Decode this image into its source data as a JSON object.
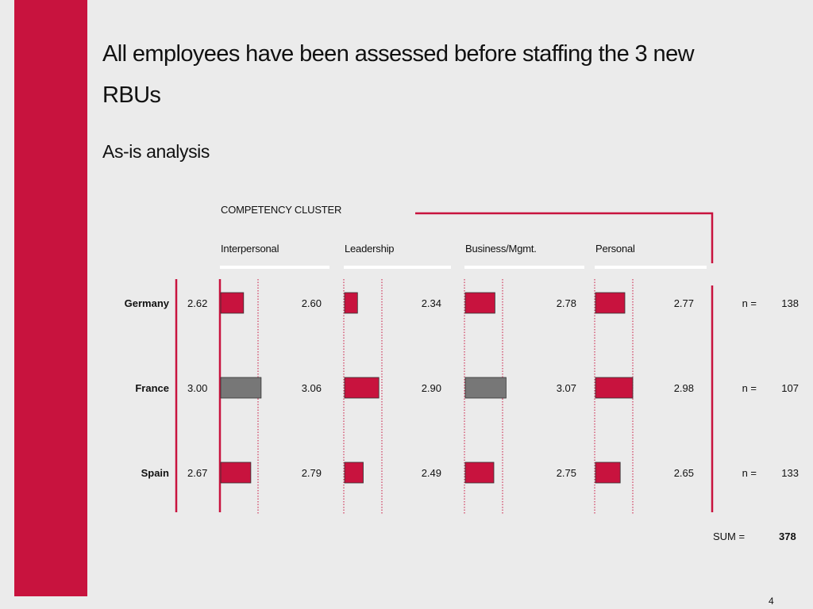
{
  "slide": {
    "title": "All employees have been assessed before staffing the 3 new RBUs",
    "subtitle": "As-is analysis",
    "page_number": "4"
  },
  "colors": {
    "accent": "#c8133e",
    "highlight_bar": "#777777",
    "background": "#ebebeb"
  },
  "chart_data": {
    "type": "bar",
    "title": "COMPETENCY CLUSTER",
    "categories": [
      "Interpersonal",
      "Leadership",
      "Business/Mgmt.",
      "Personal"
    ],
    "rows": [
      "Germany",
      "France",
      "Spain"
    ],
    "row_averages": [
      "2.62",
      "3.00",
      "2.67"
    ],
    "values": [
      [
        2.6,
        2.34,
        2.78,
        2.77
      ],
      [
        3.06,
        2.9,
        3.07,
        2.98
      ],
      [
        2.79,
        2.49,
        2.75,
        2.65
      ]
    ],
    "value_labels": [
      [
        "2.60",
        "2.34",
        "2.78",
        "2.77"
      ],
      [
        "3.06",
        "2.90",
        "3.07",
        "2.98"
      ],
      [
        "2.79",
        "2.49",
        "2.75",
        "2.65"
      ]
    ],
    "highlighted": [
      [
        false,
        false,
        false,
        false
      ],
      [
        true,
        false,
        true,
        false
      ],
      [
        false,
        false,
        false,
        false
      ]
    ],
    "n_label": "n =",
    "n_values": [
      "138",
      "107",
      "133"
    ],
    "sum_label": "SUM =",
    "sum_value": "378"
  }
}
